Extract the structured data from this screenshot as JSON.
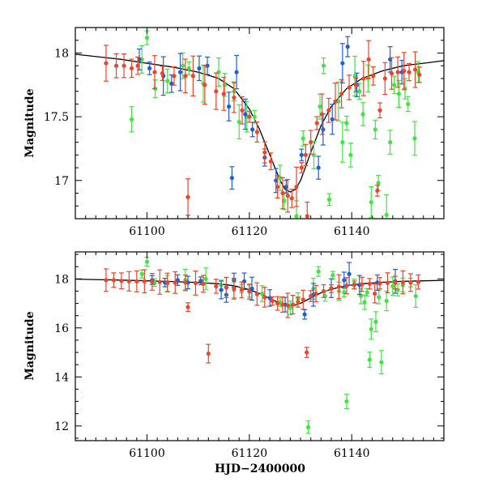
{
  "chart_data": [
    {
      "type": "scatter",
      "panel": "top",
      "title": "",
      "xlabel": "",
      "ylabel": "Magnitude",
      "xlim": [
        61086,
        61158
      ],
      "ylim": [
        18.2,
        16.7
      ],
      "y_inverted": true,
      "xticks": [
        61100,
        61120,
        61140
      ],
      "yticks": [
        17,
        17.5,
        18
      ],
      "ytick_labels": [
        "17",
        "17.5",
        "18"
      ],
      "series_colors": {
        "model": "#000000",
        "blue": "#1f5fd6",
        "green": "#3ee63e",
        "red": "#f0432a"
      },
      "model_curve": {
        "x": [
          61086,
          61095,
          61100,
          61105,
          61110,
          61114,
          61117,
          61120,
          61122,
          61124,
          61126,
          61127,
          61128,
          61129,
          61130,
          61132,
          61134,
          61136,
          61139,
          61142,
          61146,
          61150,
          61154,
          61158
        ],
        "y": [
          17.99,
          17.95,
          17.92,
          17.89,
          17.85,
          17.8,
          17.72,
          17.56,
          17.4,
          17.2,
          17.0,
          16.93,
          16.91,
          16.93,
          17.0,
          17.22,
          17.43,
          17.58,
          17.72,
          17.8,
          17.86,
          17.9,
          17.92,
          17.94
        ]
      },
      "series": [
        {
          "name": "blue",
          "points": [
            [
              61098.5,
              17.95
            ],
            [
              61100.5,
              17.88
            ],
            [
              61103.2,
              17.82
            ],
            [
              61104.8,
              17.76
            ],
            [
              61106.5,
              17.85
            ],
            [
              61110.2,
              17.88
            ],
            [
              61111.8,
              17.9
            ],
            [
              61116.0,
              17.58
            ],
            [
              61116.6,
              17.02
            ],
            [
              61117.5,
              17.85
            ],
            [
              61119.2,
              17.52
            ],
            [
              61120.6,
              17.4
            ],
            [
              61123.0,
              17.18
            ],
            [
              61125.2,
              17.0
            ],
            [
              61127.2,
              16.95
            ],
            [
              61130.2,
              17.2
            ],
            [
              61133.5,
              17.1
            ],
            [
              61134.4,
              17.4
            ],
            [
              61136.2,
              17.48
            ],
            [
              61138.2,
              17.92
            ],
            [
              61139.2,
              18.05
            ],
            [
              61141.0,
              17.75
            ],
            [
              61147.5,
              17.95
            ],
            [
              61149.8,
              17.85
            ]
          ]
        },
        {
          "name": "green",
          "points": [
            [
              61097.0,
              17.48
            ],
            [
              61099.0,
              17.95
            ],
            [
              61100.0,
              18.12
            ],
            [
              61101.6,
              17.72
            ],
            [
              61104.0,
              17.78
            ],
            [
              61107.0,
              17.9
            ],
            [
              61108.2,
              17.88
            ],
            [
              61111.0,
              17.76
            ],
            [
              61114.0,
              17.85
            ],
            [
              61115.2,
              17.75
            ],
            [
              61117.0,
              17.7
            ],
            [
              61118.0,
              17.46
            ],
            [
              61119.5,
              17.5
            ],
            [
              61121.0,
              17.5
            ],
            [
              61126.0,
              17.02
            ],
            [
              61126.8,
              16.84
            ],
            [
              61129.2,
              16.72
            ],
            [
              61130.5,
              17.33
            ],
            [
              61132.6,
              17.2
            ],
            [
              61133.8,
              17.58
            ],
            [
              61134.5,
              17.9
            ],
            [
              61135.6,
              16.85
            ],
            [
              61137.4,
              17.62
            ],
            [
              61138.2,
              17.3
            ],
            [
              61139.0,
              17.45
            ],
            [
              61139.8,
              17.2
            ],
            [
              61140.6,
              17.82
            ],
            [
              61141.5,
              17.7
            ],
            [
              61142.2,
              17.52
            ],
            [
              61143.2,
              17.8
            ],
            [
              61143.8,
              16.83
            ],
            [
              61144.6,
              17.4
            ],
            [
              61145.2,
              16.98
            ],
            [
              61146.8,
              16.73
            ],
            [
              61147.5,
              17.3
            ],
            [
              61148.3,
              17.75
            ],
            [
              61149.2,
              17.68
            ],
            [
              61150.4,
              17.72
            ],
            [
              61151.0,
              17.6
            ],
            [
              61152.3,
              17.33
            ],
            [
              61153.0,
              17.85
            ]
          ]
        },
        {
          "name": "red",
          "points": [
            [
              61092.0,
              17.92
            ],
            [
              61094.0,
              17.9
            ],
            [
              61095.5,
              17.9
            ],
            [
              61097.0,
              17.88
            ],
            [
              61098.2,
              17.9
            ],
            [
              61101.5,
              17.85
            ],
            [
              61103.0,
              17.84
            ],
            [
              61105.3,
              17.82
            ],
            [
              61107.5,
              17.82
            ],
            [
              61108.0,
              16.87
            ],
            [
              61109.0,
              17.82
            ],
            [
              61111.3,
              17.75
            ],
            [
              61113.5,
              17.7
            ],
            [
              61115.0,
              17.68
            ],
            [
              61117.0,
              17.65
            ],
            [
              61118.6,
              17.55
            ],
            [
              61120.0,
              17.5
            ],
            [
              61121.5,
              17.38
            ],
            [
              61123.0,
              17.22
            ],
            [
              61124.2,
              17.15
            ],
            [
              61125.5,
              16.95
            ],
            [
              61126.5,
              16.9
            ],
            [
              61127.5,
              16.88
            ],
            [
              61128.3,
              16.86
            ],
            [
              61129.2,
              16.95
            ],
            [
              61130.2,
              17.1
            ],
            [
              61131.0,
              17.2
            ],
            [
              61131.3,
              16.72
            ],
            [
              61132.0,
              17.3
            ],
            [
              61133.2,
              17.45
            ],
            [
              61134.2,
              17.52
            ],
            [
              61135.5,
              17.55
            ],
            [
              61136.8,
              17.62
            ],
            [
              61138.0,
              17.68
            ],
            [
              61139.5,
              17.73
            ],
            [
              61140.8,
              17.75
            ],
            [
              61142.3,
              17.8
            ],
            [
              61143.3,
              17.95
            ],
            [
              61144.2,
              17.82
            ],
            [
              61145.0,
              16.92
            ],
            [
              61145.5,
              17.55
            ],
            [
              61146.5,
              17.8
            ],
            [
              61147.8,
              17.84
            ],
            [
              61149.0,
              17.85
            ],
            [
              61150.2,
              17.86
            ],
            [
              61151.2,
              17.85
            ],
            [
              61152.4,
              17.87
            ],
            [
              61153.2,
              17.83
            ]
          ]
        }
      ]
    },
    {
      "type": "scatter",
      "panel": "bottom",
      "title": "",
      "xlabel": "HJD−2400000",
      "ylabel": "Magnitude",
      "xlim": [
        61086,
        61158
      ],
      "ylim": [
        19.1,
        11.4
      ],
      "y_inverted": true,
      "xticks": [
        61100,
        61120,
        61140
      ],
      "yticks": [
        12,
        14,
        16,
        18
      ],
      "ytick_labels": [
        "12",
        "14",
        "16",
        "18"
      ],
      "model_curve": {
        "x": [
          61086,
          61095,
          61100,
          61105,
          61110,
          61114,
          61117,
          61120,
          61122,
          61124,
          61126,
          61127,
          61128,
          61129,
          61130,
          61132,
          61134,
          61136,
          61139,
          61142,
          61146,
          61150,
          61154,
          61158
        ],
        "y": [
          17.99,
          17.95,
          17.92,
          17.89,
          17.85,
          17.8,
          17.72,
          17.56,
          17.4,
          17.2,
          17.0,
          16.93,
          16.91,
          16.93,
          17.0,
          17.22,
          17.43,
          17.58,
          17.72,
          17.8,
          17.86,
          17.9,
          17.92,
          17.94
        ]
      },
      "series": [
        {
          "name": "blue",
          "points": [
            [
              61101.0,
              17.95
            ],
            [
              61103.5,
              17.85
            ],
            [
              61106.0,
              17.95
            ],
            [
              61108.0,
              17.85
            ],
            [
              61110.5,
              17.92
            ],
            [
              61114.5,
              17.55
            ],
            [
              61115.5,
              17.35
            ],
            [
              61117.0,
              17.95
            ],
            [
              61119.0,
              17.9
            ],
            [
              61120.5,
              17.6
            ],
            [
              61124.0,
              17.22
            ],
            [
              61127.0,
              16.95
            ],
            [
              61130.8,
              16.55
            ],
            [
              61132.5,
              17.35
            ],
            [
              61136.0,
              17.62
            ],
            [
              61138.5,
              17.95
            ],
            [
              61139.5,
              18.2
            ],
            [
              61141.5,
              17.75
            ],
            [
              61145.0,
              17.85
            ],
            [
              61148.5,
              17.9
            ]
          ]
        },
        {
          "name": "green",
          "points": [
            [
              61099.0,
              18.2
            ],
            [
              61100.0,
              18.7
            ],
            [
              61101.5,
              17.85
            ],
            [
              61104.0,
              17.8
            ],
            [
              61107.5,
              17.95
            ],
            [
              61111.5,
              18.0
            ],
            [
              61114.5,
              17.75
            ],
            [
              61117.0,
              17.55
            ],
            [
              61118.5,
              17.6
            ],
            [
              61120.0,
              17.5
            ],
            [
              61122.5,
              17.4
            ],
            [
              61126.0,
              17.05
            ],
            [
              61128.0,
              16.82
            ],
            [
              61129.5,
              17.2
            ],
            [
              61131.5,
              11.95
            ],
            [
              61132.5,
              17.6
            ],
            [
              61133.5,
              18.3
            ],
            [
              61134.8,
              17.3
            ],
            [
              61136.3,
              18.15
            ],
            [
              61137.5,
              17.5
            ],
            [
              61138.5,
              17.45
            ],
            [
              61139.0,
              13.0
            ],
            [
              61140.5,
              17.8
            ],
            [
              61141.8,
              17.3
            ],
            [
              61142.5,
              17.05
            ],
            [
              61143.0,
              17.45
            ],
            [
              61143.8,
              15.95
            ],
            [
              61143.5,
              14.7
            ],
            [
              61144.7,
              16.25
            ],
            [
              61145.3,
              17.25
            ],
            [
              61145.8,
              14.6
            ],
            [
              61146.8,
              17.1
            ],
            [
              61148.0,
              17.7
            ],
            [
              61149.0,
              17.55
            ],
            [
              61150.0,
              17.75
            ],
            [
              61151.5,
              17.85
            ],
            [
              61152.5,
              17.3
            ]
          ]
        },
        {
          "name": "red",
          "points": [
            [
              61092.0,
              17.95
            ],
            [
              61093.5,
              17.95
            ],
            [
              61095.0,
              17.92
            ],
            [
              61096.5,
              17.9
            ],
            [
              61098.0,
              17.9
            ],
            [
              61099.5,
              17.9
            ],
            [
              61101.0,
              17.88
            ],
            [
              61102.5,
              17.87
            ],
            [
              61104.0,
              17.86
            ],
            [
              61105.5,
              17.85
            ],
            [
              61107.5,
              17.85
            ],
            [
              61108.0,
              16.85
            ],
            [
              61109.5,
              17.83
            ],
            [
              61111.0,
              17.8
            ],
            [
              61112.0,
              14.95
            ],
            [
              61113.5,
              17.7
            ],
            [
              61115.5,
              17.65
            ],
            [
              61117.0,
              17.6
            ],
            [
              61118.5,
              17.55
            ],
            [
              61120.0,
              17.48
            ],
            [
              61121.5,
              17.38
            ],
            [
              61123.0,
              17.25
            ],
            [
              61124.5,
              17.1
            ],
            [
              61125.5,
              17.0
            ],
            [
              61126.5,
              16.95
            ],
            [
              61127.5,
              16.92
            ],
            [
              61128.5,
              16.95
            ],
            [
              61129.5,
              17.05
            ],
            [
              61130.5,
              17.15
            ],
            [
              61131.2,
              15.0
            ],
            [
              61132.0,
              17.3
            ],
            [
              61133.0,
              17.4
            ],
            [
              61134.5,
              17.5
            ],
            [
              61136.0,
              17.6
            ],
            [
              61137.5,
              17.68
            ],
            [
              61139.0,
              17.72
            ],
            [
              61140.5,
              17.75
            ],
            [
              61142.0,
              17.78
            ],
            [
              61143.5,
              17.8
            ],
            [
              61144.5,
              17.4
            ],
            [
              61145.5,
              17.82
            ],
            [
              61147.0,
              17.84
            ],
            [
              61148.5,
              17.85
            ],
            [
              61150.0,
              17.86
            ],
            [
              61151.5,
              17.85
            ],
            [
              61153.0,
              17.87
            ]
          ]
        }
      ]
    }
  ]
}
